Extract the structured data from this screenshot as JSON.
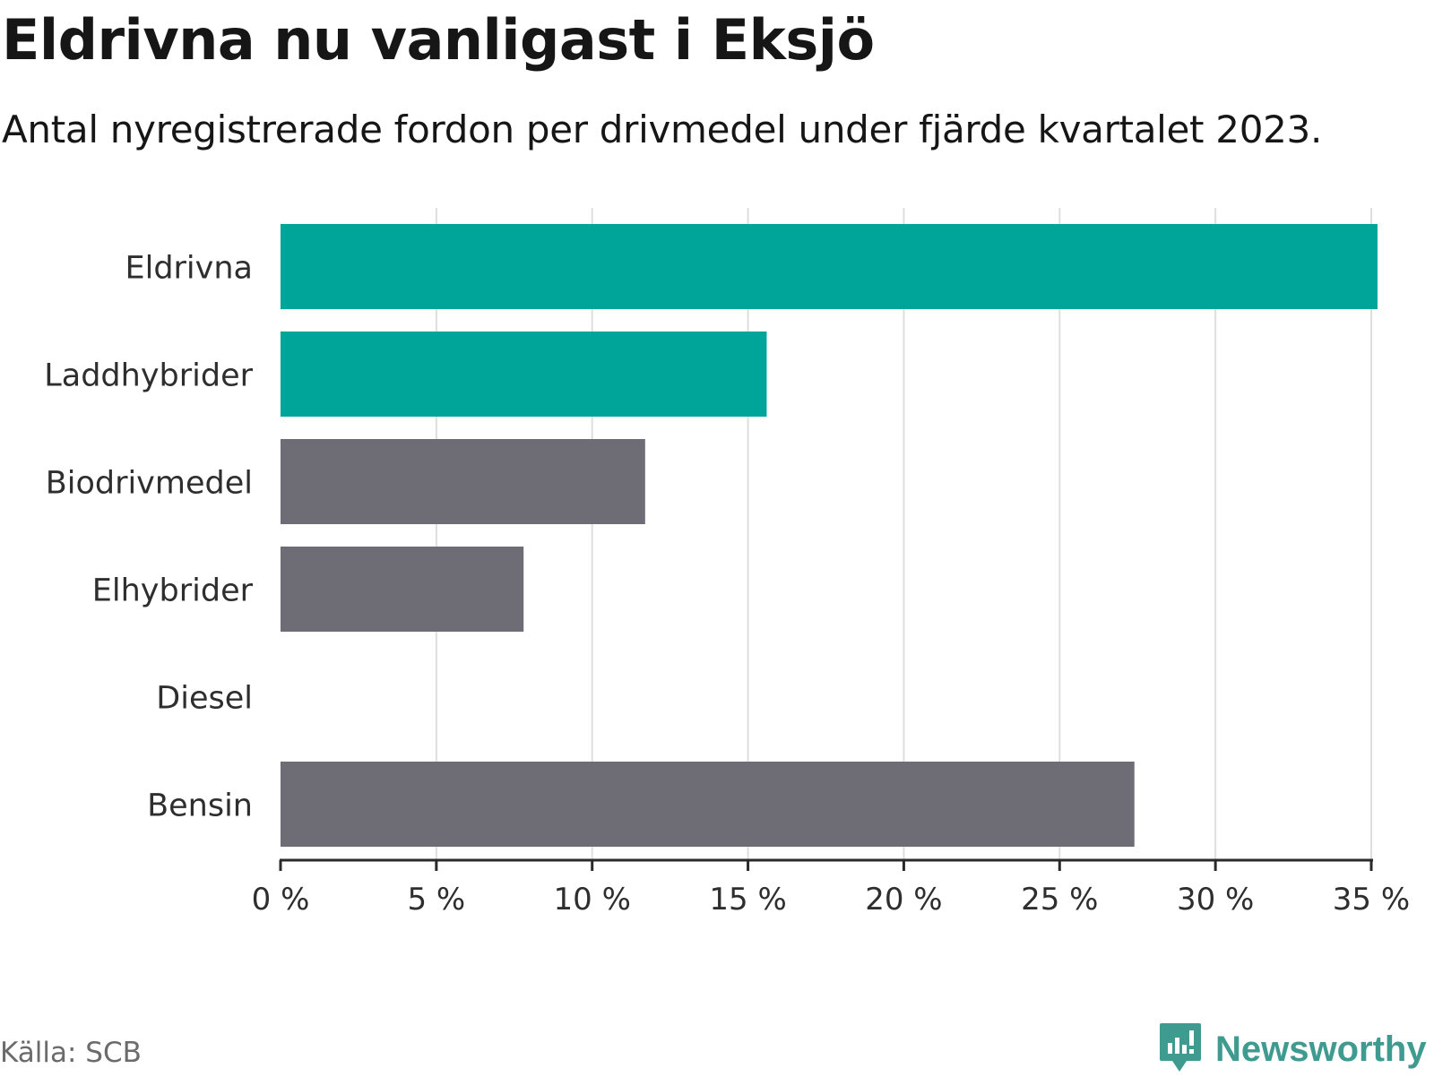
{
  "header": {
    "title": "Eldrivna nu vanligast i Eksjö",
    "subtitle": "Antal nyregistrerade fordon per drivmedel under fjärde kvartalet 2023."
  },
  "chart_data": {
    "type": "bar",
    "orientation": "horizontal",
    "categories": [
      "Eldrivna",
      "Laddhybrider",
      "Biodrivmedel",
      "Elhybrider",
      "Diesel",
      "Bensin"
    ],
    "values": [
      35.2,
      15.6,
      11.7,
      7.8,
      0,
      27.4
    ],
    "colors": [
      "#00a59a",
      "#00a59a",
      "#6e6d75",
      "#6e6d75",
      "#6e6d75",
      "#6e6d75"
    ],
    "xlim": [
      0,
      35
    ],
    "ticks": [
      0,
      5,
      10,
      15,
      20,
      25,
      30,
      35
    ],
    "tick_labels": [
      "0 %",
      "5 %",
      "10 %",
      "15 %",
      "20 %",
      "25 %",
      "30 %",
      "35 %"
    ],
    "xlabel": "",
    "ylabel": "",
    "grid": true
  },
  "footer": {
    "source": "Källa: SCB",
    "brand": "Newsworthy",
    "brand_icon": "newsworthy-logo-icon",
    "brand_color": "#3f9a8f"
  }
}
